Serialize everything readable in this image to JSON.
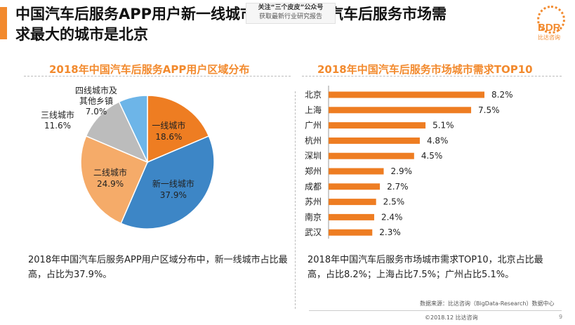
{
  "header": {
    "title_line1": "中国汽车后服务APP用户新一线城市占比最高，汽车后服务市场需",
    "title_line2": "求最大的城市是北京",
    "watermark_line1": "关注“三个皮皮”公众号",
    "watermark_line2": "获取最新行业研究报告",
    "logo_text": "BDR",
    "logo_sub": "比达咨询"
  },
  "colors": {
    "accent": "#f28a2e",
    "tier1": "#ee7d22",
    "newtier1": "#3d86c6",
    "tier2": "#f5ab69",
    "tier3": "#bcbcbc",
    "tier4": "#6db5e8",
    "bar": "#ee7d22"
  },
  "chart_data": [
    {
      "type": "pie",
      "title": "2018年中国汽车后服务APP用户区域分布",
      "slices": [
        {
          "label": "一线城市",
          "value": 18.6,
          "value_label": "18.6%"
        },
        {
          "label": "新一线城市",
          "value": 37.9,
          "value_label": "37.9%"
        },
        {
          "label": "二线城市",
          "value": 24.9,
          "value_label": "24.9%"
        },
        {
          "label": "三线城市",
          "value": 11.6,
          "value_label": "11.6%"
        },
        {
          "label_line1": "四线城市及",
          "label_line2": "其他乡镇",
          "label": "四线城市及其他乡镇",
          "value": 7.0,
          "value_label": "7.0%"
        }
      ]
    },
    {
      "type": "bar",
      "orientation": "horizontal",
      "title": "2018年中国汽车后服务市场城市需求TOP10",
      "categories": [
        "北京",
        "上海",
        "广州",
        "杭州",
        "深圳",
        "郑州",
        "成都",
        "苏州",
        "南京",
        "武汉"
      ],
      "values": [
        8.2,
        7.5,
        5.1,
        4.8,
        4.5,
        2.9,
        2.7,
        2.5,
        2.4,
        2.3
      ],
      "value_labels": [
        "8.2%",
        "7.5%",
        "5.1%",
        "4.8%",
        "4.5%",
        "2.9%",
        "2.7%",
        "2.5%",
        "2.4%",
        "2.3%"
      ]
    }
  ],
  "captions": {
    "pie": "2018年中国汽车后服务APP用户区域分布中，新一线城市占比最高，占比为37.9%。",
    "bar": "2018年中国汽车后服务市场城市需求TOP10，北京占比最高，占比8.2%；上海占比7.5%；广州占比5.1%。"
  },
  "footer": {
    "source": "数据来源：比达咨询（BigData-Research）数据中心",
    "copyright": "©2018.12 比达咨询",
    "page": "9"
  }
}
